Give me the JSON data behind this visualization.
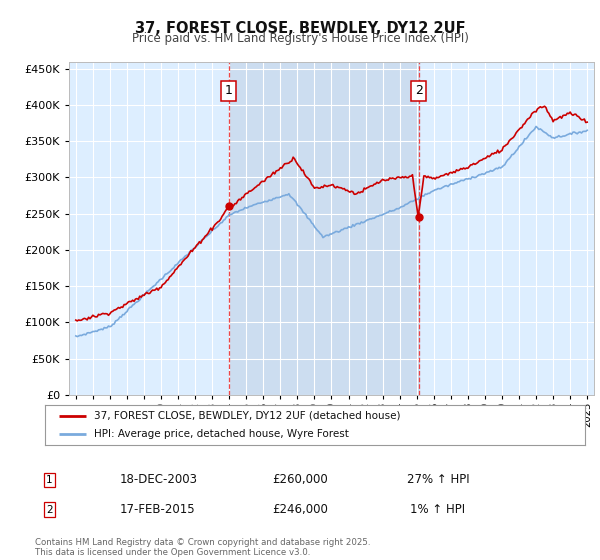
{
  "title": "37, FOREST CLOSE, BEWDLEY, DY12 2UF",
  "subtitle": "Price paid vs. HM Land Registry's House Price Index (HPI)",
  "legend_line1": "37, FOREST CLOSE, BEWDLEY, DY12 2UF (detached house)",
  "legend_line2": "HPI: Average price, detached house, Wyre Forest",
  "footer": "Contains HM Land Registry data © Crown copyright and database right 2025.\nThis data is licensed under the Open Government Licence v3.0.",
  "transaction1_date": "18-DEC-2003",
  "transaction1_price": "£260,000",
  "transaction1_hpi": "27% ↑ HPI",
  "transaction2_date": "17-FEB-2015",
  "transaction2_price": "£246,000",
  "transaction2_hpi": "1% ↑ HPI",
  "sale1_x": 2003.96,
  "sale1_y": 260000,
  "sale2_x": 2015.12,
  "sale2_y": 246000,
  "ylim": [
    0,
    460000
  ],
  "xlim": [
    1994.6,
    2025.4
  ],
  "background_color": "#ddeeff",
  "red_color": "#cc0000",
  "blue_color": "#7aaadd",
  "grid_color": "#ffffff",
  "vline_color": "#ee3333",
  "box_color": "#cc0000",
  "span_color": "#ccddf0"
}
